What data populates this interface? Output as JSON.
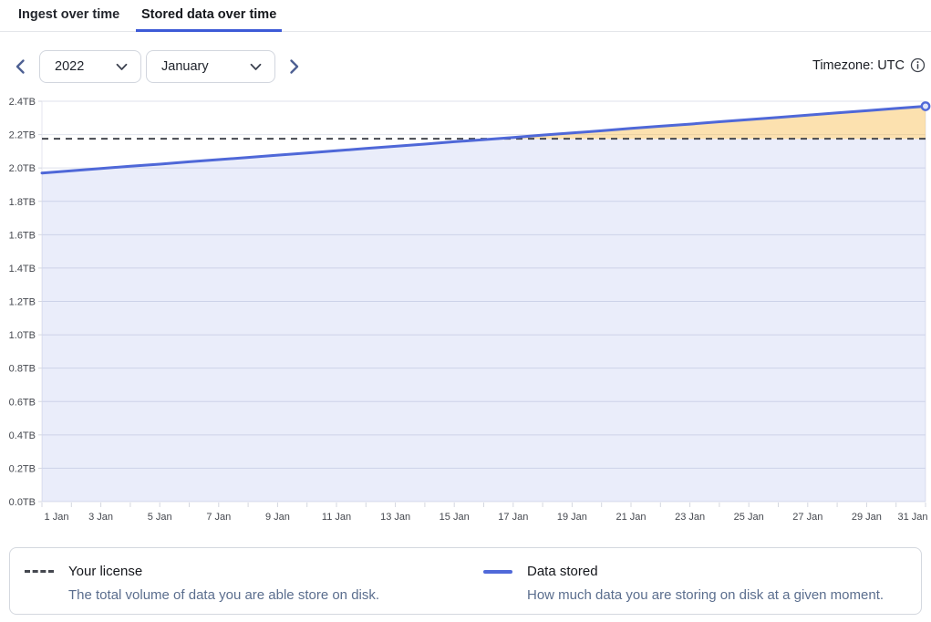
{
  "tabs": [
    {
      "label": "Ingest over time",
      "active": false
    },
    {
      "label": "Stored data over time",
      "active": true
    }
  ],
  "controls": {
    "year": "2022",
    "month": "January",
    "timezone_label": "Timezone: UTC"
  },
  "icons": {
    "prev": "chevron-left",
    "next": "chevron-right",
    "year_dropdown": "chevron-down",
    "month_dropdown": "chevron-down",
    "timezone_info": "info-circle"
  },
  "legend": [
    {
      "title": "Your license",
      "description": "The total volume of data you are able store on disk.",
      "swatch": "dashed"
    },
    {
      "title": "Data stored",
      "description": "How much data you are storing on disk at a given moment.",
      "swatch": "line"
    }
  ],
  "colors": {
    "accent_blue": "#3d5ad7",
    "line": "#4f68d8",
    "marker_fill": "#dfe5f8",
    "area_fill": "rgba(79,104,216,0.12)",
    "overage_fill": "rgba(247,181,56,0.40)",
    "license": "#44474f",
    "grid": "#dfe2ec",
    "plot_border": "#e4e6ef",
    "tick": "#d4d7e0",
    "axis_text": "#45484f"
  },
  "chart_data": {
    "type": "area",
    "title": "",
    "xlabel": "",
    "ylabel": "",
    "y_unit": "TB",
    "ylim": [
      0,
      2.4
    ],
    "grid": true,
    "legend_position": "bottom",
    "x": [
      1,
      2,
      3,
      4,
      5,
      6,
      7,
      8,
      9,
      10,
      11,
      12,
      13,
      14,
      15,
      16,
      17,
      18,
      19,
      20,
      21,
      22,
      23,
      24,
      25,
      26,
      27,
      28,
      29,
      30,
      31
    ],
    "x_ticks": [
      1,
      3,
      5,
      7,
      9,
      11,
      13,
      15,
      17,
      19,
      21,
      23,
      25,
      27,
      29,
      31
    ],
    "x_tick_labels": [
      "1 Jan",
      "3 Jan",
      "5 Jan",
      "7 Jan",
      "9 Jan",
      "11 Jan",
      "13 Jan",
      "15 Jan",
      "17 Jan",
      "19 Jan",
      "21 Jan",
      "23 Jan",
      "25 Jan",
      "27 Jan",
      "29 Jan",
      "31 Jan"
    ],
    "y_ticks": [
      0,
      0.2,
      0.4,
      0.6,
      0.8,
      1,
      1.2,
      1.4,
      1.6,
      1.8,
      2,
      2.2,
      2.4
    ],
    "series": [
      {
        "name": "Data stored",
        "values": [
          1.97,
          1.983,
          1.997,
          2.01,
          2.023,
          2.037,
          2.05,
          2.063,
          2.077,
          2.09,
          2.103,
          2.117,
          2.13,
          2.143,
          2.157,
          2.17,
          2.183,
          2.197,
          2.21,
          2.223,
          2.237,
          2.25,
          2.263,
          2.277,
          2.29,
          2.303,
          2.317,
          2.33,
          2.343,
          2.357,
          2.37
        ]
      }
    ],
    "license_line": {
      "name": "Your license",
      "value": 2.175,
      "style": "dashed"
    }
  }
}
